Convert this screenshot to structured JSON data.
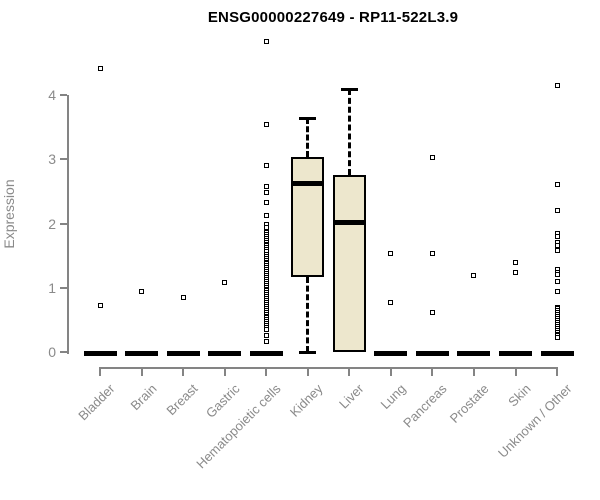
{
  "chart_data": {
    "type": "boxplot",
    "title": "ENSG00000227649 - RP11-522L3.9",
    "ylabel": "Expression",
    "xlabel": "",
    "yticks": [
      0,
      1,
      2,
      3,
      4
    ],
    "ylim": [
      0,
      4.9
    ],
    "grid": false,
    "legend": "none",
    "marker": "open-square-icon",
    "colors": {
      "box_fill": "#EDE7CD",
      "box_border": "#000000",
      "axis": "#848484",
      "axis_text": "#8a8a8a",
      "title_text": "#000000"
    },
    "categories": [
      "Bladder",
      "Brain",
      "Breast",
      "Gastric",
      "Hematopoietic cells",
      "Kidney",
      "Liver",
      "Lung",
      "Pancreas",
      "Prostate",
      "Skin",
      "Unknown / Other"
    ],
    "series": [
      {
        "category": "Bladder",
        "stats": {
          "min": 0,
          "q1": 0,
          "median": 0,
          "q3": 0,
          "max": 0
        },
        "outliers": [
          4.42,
          0.72
        ]
      },
      {
        "category": "Brain",
        "stats": {
          "min": 0,
          "q1": 0,
          "median": 0,
          "q3": 0,
          "max": 0
        },
        "outliers": [
          0.94
        ]
      },
      {
        "category": "Breast",
        "stats": {
          "min": 0,
          "q1": 0,
          "median": 0,
          "q3": 0,
          "max": 0
        },
        "outliers": [
          0.85
        ]
      },
      {
        "category": "Gastric",
        "stats": {
          "min": 0,
          "q1": 0,
          "median": 0,
          "q3": 0,
          "max": 0
        },
        "outliers": [
          1.08
        ]
      },
      {
        "category": "Hematopoietic cells",
        "stats": {
          "min": 0,
          "q1": 0,
          "median": 0,
          "q3": 0,
          "max": 0
        },
        "outliers": [
          4.83,
          3.54,
          2.9,
          2.57,
          2.48,
          2.33,
          2.12,
          1.98,
          1.93,
          1.86,
          1.83,
          1.8,
          1.77,
          1.74,
          1.71,
          1.68,
          1.65,
          1.62,
          1.59,
          1.56,
          1.52,
          1.49,
          1.46,
          1.43,
          1.4,
          1.37,
          1.34,
          1.31,
          1.28,
          1.25,
          1.22,
          1.19,
          1.16,
          1.13,
          1.1,
          1.07,
          1.04,
          1.01,
          0.98,
          0.95,
          0.92,
          0.89,
          0.86,
          0.83,
          0.8,
          0.77,
          0.74,
          0.71,
          0.68,
          0.65,
          0.62,
          0.59,
          0.56,
          0.53,
          0.5,
          0.47,
          0.44,
          0.41,
          0.38,
          0.35,
          0.25,
          0.16
        ]
      },
      {
        "category": "Kidney",
        "stats": {
          "min": 0,
          "q1": 1.16,
          "median": 2.62,
          "q3": 3.03,
          "max": 3.64
        },
        "outliers": []
      },
      {
        "category": "Liver",
        "stats": {
          "min": 0,
          "q1": 0,
          "median": 2.02,
          "q3": 2.75,
          "max": 4.1
        },
        "outliers": []
      },
      {
        "category": "Lung",
        "stats": {
          "min": 0,
          "q1": 0,
          "median": 0,
          "q3": 0,
          "max": 0
        },
        "outliers": [
          1.54,
          0.77
        ]
      },
      {
        "category": "Pancreas",
        "stats": {
          "min": 0,
          "q1": 0,
          "median": 0,
          "q3": 0,
          "max": 0
        },
        "outliers": [
          3.02,
          1.54,
          0.61
        ]
      },
      {
        "category": "Prostate",
        "stats": {
          "min": 0,
          "q1": 0,
          "median": 0,
          "q3": 0,
          "max": 0
        },
        "outliers": [
          1.19
        ]
      },
      {
        "category": "Skin",
        "stats": {
          "min": 0,
          "q1": 0,
          "median": 0,
          "q3": 0,
          "max": 0
        },
        "outliers": [
          1.39,
          1.23
        ]
      },
      {
        "category": "Unknown / Other",
        "stats": {
          "min": 0,
          "q1": 0,
          "median": 0,
          "q3": 0,
          "max": 0
        },
        "outliers": [
          4.15,
          2.6,
          2.2,
          1.85,
          1.79,
          1.7,
          1.66,
          1.58,
          1.28,
          1.24,
          1.2,
          1.09,
          0.94,
          0.7,
          0.67,
          0.64,
          0.61,
          0.58,
          0.55,
          0.52,
          0.49,
          0.46,
          0.43,
          0.4,
          0.37,
          0.34,
          0.31,
          0.28,
          0.25,
          0.22
        ]
      }
    ]
  }
}
